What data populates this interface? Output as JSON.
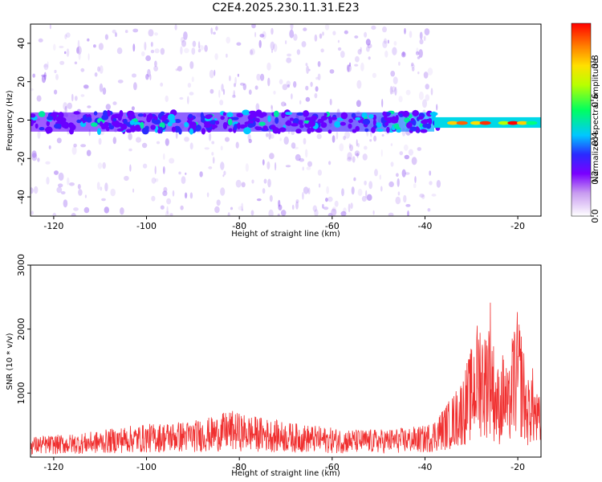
{
  "title": "C2E4.2025.230.11.31.E23",
  "chart_data": [
    {
      "type": "heatmap",
      "xlabel": "Height of straight line (km)",
      "ylabel": "Frequency (Hz)",
      "xlim": [
        -125,
        -15
      ],
      "ylim": [
        -50,
        50
      ],
      "xticks": [
        -120,
        -100,
        -80,
        -60,
        -40,
        -20
      ],
      "yticks": [
        -40,
        -20,
        0,
        20,
        40
      ],
      "colorbar": {
        "label": "Normalized spectral amplitude",
        "range": [
          0,
          1
        ],
        "ticks": [
          0.0,
          0.2,
          0.4,
          0.6,
          0.8
        ],
        "colormap": "rainbow"
      },
      "grid": false
    },
    {
      "type": "line",
      "xlabel": "Height of straight line (km)",
      "ylabel": "SNR (10 * v/v)",
      "xlim": [
        -125,
        -15
      ],
      "ylim": [
        0,
        3000
      ],
      "xticks": [
        -120,
        -100,
        -80,
        -60,
        -40,
        -20
      ],
      "yticks": [
        1000,
        2000,
        3000
      ],
      "line_color": "#f03030",
      "series": [
        {
          "x": [
            -125,
            -120,
            -115,
            -110,
            -105,
            -100,
            -95,
            -90,
            -85,
            -82,
            -80,
            -75,
            -70,
            -65,
            -60,
            -55,
            -50,
            -45,
            -40,
            -38,
            -36,
            -34,
            -32,
            -30,
            -29,
            -28,
            -27,
            -26,
            -25,
            -24,
            -23,
            -22,
            -21,
            -20,
            -19,
            -18,
            -17,
            -16,
            -15
          ],
          "values": [
            280,
            300,
            320,
            360,
            420,
            450,
            480,
            500,
            560,
            640,
            600,
            540,
            480,
            440,
            400,
            380,
            380,
            400,
            430,
            520,
            680,
            850,
            1100,
            1500,
            1800,
            2000,
            1700,
            2300,
            1400,
            1200,
            1500,
            1100,
            1800,
            2000,
            1700,
            1000,
            1300,
            900,
            800
          ]
        }
      ]
    }
  ]
}
